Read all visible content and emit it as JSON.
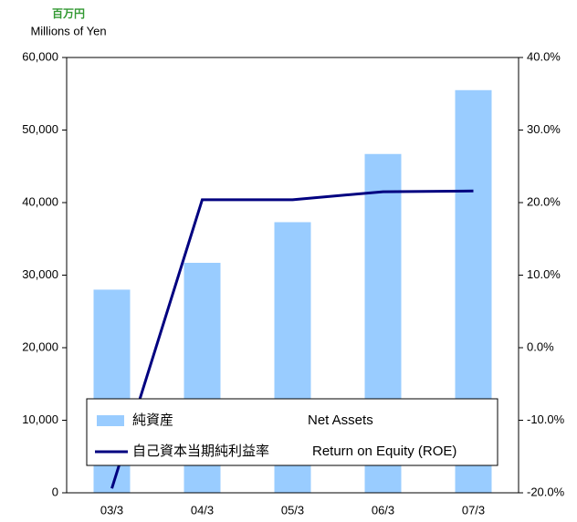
{
  "chart_data": {
    "type": "bar_line",
    "unit_label_ja": "百万円",
    "unit_label": "Millions of Yen",
    "categories": [
      "03/3",
      "04/3",
      "05/3",
      "06/3",
      "07/3"
    ],
    "series": [
      {
        "name": "純資産",
        "name_en": "Net Assets",
        "type": "bar",
        "color": "#99ccff",
        "values": [
          28000,
          31700,
          37300,
          46700,
          55500
        ]
      },
      {
        "name": "自己資本当期純利益率",
        "name_en": "Return on Equity (ROE)",
        "type": "line",
        "axis": "y2",
        "color": "#000080",
        "values": [
          -19.4,
          20.4,
          20.4,
          21.5,
          21.6
        ]
      }
    ],
    "ylim": [
      0,
      60000
    ],
    "yticks": [
      0,
      {
        "value": 10000,
        "label": "10,000"
      },
      {
        "value": 20000,
        "label": "20,000"
      },
      {
        "value": 30000,
        "label": "30,000"
      },
      {
        "value": 40000,
        "label": "40,000"
      },
      {
        "value": 50000,
        "label": "50,000"
      },
      {
        "value": 60000,
        "label": "60,000"
      }
    ],
    "y2lim": [
      -20,
      40
    ],
    "y2ticks": [
      {
        "value": -20,
        "label": "-20.0%"
      },
      {
        "value": -10,
        "label": "-10.0%"
      },
      {
        "value": 0,
        "label": "0.0%"
      },
      {
        "value": 10,
        "label": "10.0%"
      },
      {
        "value": 20,
        "label": "20.0%"
      },
      {
        "value": 30,
        "label": "30.0%"
      },
      {
        "value": 40,
        "label": "40.0%"
      }
    ]
  }
}
